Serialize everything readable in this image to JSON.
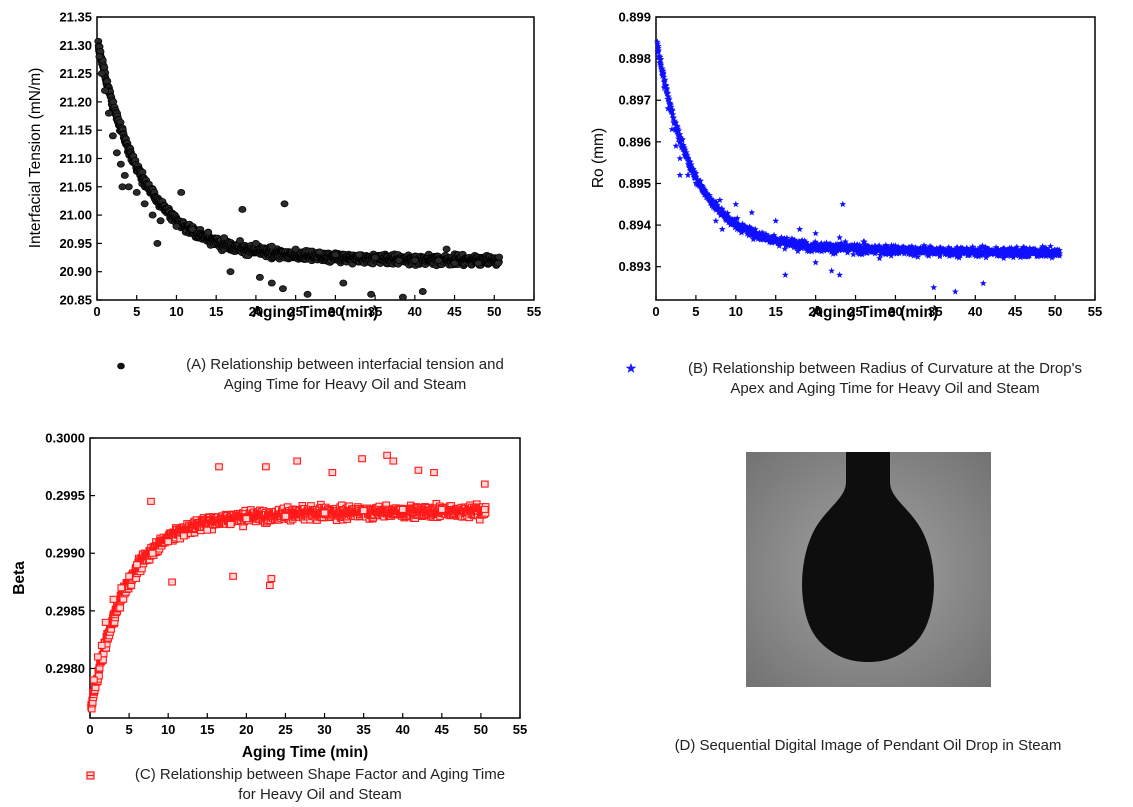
{
  "chart_data": [
    {
      "panel": "A",
      "type": "scatter",
      "xlabel": "Aging Time (min)",
      "ylabel": "Interfacial Tension (mN/m)",
      "xlim": [
        0,
        55
      ],
      "ylim": [
        20.85,
        21.35
      ],
      "xticks": [
        0,
        5,
        10,
        15,
        20,
        25,
        30,
        35,
        40,
        45,
        50,
        55
      ],
      "yticks": [
        "20.85",
        "20.90",
        "20.95",
        "21.00",
        "21.05",
        "21.10",
        "21.15",
        "21.20",
        "21.25",
        "21.30",
        "21.35"
      ],
      "marker": "circle",
      "color": "#111111",
      "series": [
        {
          "trend": {
            "start": 21.29,
            "plateau": 20.917,
            "tau": 5.5
          },
          "points": [
            [
              0.1,
              21.3
            ],
            [
              0.3,
              21.28
            ],
            [
              0.6,
              21.25
            ],
            [
              1.0,
              21.22
            ],
            [
              1.5,
              21.18
            ],
            [
              2.0,
              21.14
            ],
            [
              2.5,
              21.11
            ],
            [
              3.0,
              21.09
            ],
            [
              3.5,
              21.07
            ],
            [
              4.0,
              21.05
            ],
            [
              5.0,
              21.04
            ],
            [
              6.0,
              21.02
            ],
            [
              7.0,
              21.0
            ],
            [
              8.0,
              20.99
            ],
            [
              10.0,
              20.98
            ],
            [
              12.0,
              20.975
            ],
            [
              14.0,
              20.97
            ],
            [
              16.0,
              20.96
            ],
            [
              18.0,
              20.955
            ],
            [
              20.0,
              20.95
            ],
            [
              22.0,
              20.945
            ],
            [
              25.0,
              20.94
            ],
            [
              28.0,
              20.935
            ],
            [
              30.0,
              20.93
            ],
            [
              33.0,
              20.93
            ],
            [
              35.0,
              20.925
            ],
            [
              38.0,
              20.92
            ],
            [
              40.0,
              20.92
            ],
            [
              43.0,
              20.92
            ],
            [
              45.0,
              20.915
            ],
            [
              48.0,
              20.915
            ],
            [
              50.5,
              20.915
            ]
          ],
          "outliers": [
            [
              3.2,
              21.05
            ],
            [
              7.6,
              20.95
            ],
            [
              10.6,
              21.04
            ],
            [
              18.3,
              21.01
            ],
            [
              22.0,
              20.88
            ],
            [
              23.4,
              20.87
            ],
            [
              23.6,
              21.02
            ],
            [
              26.5,
              20.86
            ],
            [
              34.5,
              20.86
            ],
            [
              38.5,
              20.855
            ],
            [
              41.0,
              20.865
            ],
            [
              20.5,
              20.89
            ],
            [
              16.8,
              20.9
            ],
            [
              31.0,
              20.88
            ],
            [
              44.0,
              20.94
            ]
          ]
        }
      ]
    },
    {
      "panel": "B",
      "type": "scatter",
      "xlabel": "Aging Time (min)",
      "ylabel": "Ro (mm)",
      "xlim": [
        0,
        55
      ],
      "ylim": [
        0.8922,
        0.899
      ],
      "xticks": [
        0,
        5,
        10,
        15,
        20,
        25,
        30,
        35,
        40,
        45,
        50,
        55
      ],
      "yticks": [
        "0.893",
        "0.894",
        "0.895",
        "0.896",
        "0.897",
        "0.898",
        "0.899"
      ],
      "marker": "star",
      "color": "#1010ff",
      "series": [
        {
          "trend": {
            "start": 0.8982,
            "plateau": 0.8933,
            "tau": 4.5
          },
          "points": [
            [
              0.1,
              0.8986
            ],
            [
              0.3,
              0.8983
            ],
            [
              0.6,
              0.8978
            ],
            [
              1.0,
              0.8973
            ],
            [
              1.5,
              0.8968
            ],
            [
              2.0,
              0.8963
            ],
            [
              2.5,
              0.8959
            ],
            [
              3.0,
              0.8956
            ],
            [
              4.0,
              0.8952
            ],
            [
              5.0,
              0.895
            ],
            [
              6.0,
              0.8948
            ],
            [
              8.0,
              0.8946
            ],
            [
              10.0,
              0.8945
            ],
            [
              12.0,
              0.8943
            ],
            [
              15.0,
              0.8941
            ],
            [
              18.0,
              0.8939
            ],
            [
              20.0,
              0.8938
            ],
            [
              23.0,
              0.8937
            ],
            [
              26.0,
              0.8936
            ],
            [
              30.0,
              0.8935
            ],
            [
              35.0,
              0.8934
            ],
            [
              40.0,
              0.8933
            ],
            [
              45.0,
              0.8933
            ],
            [
              50.5,
              0.8933
            ]
          ],
          "outliers": [
            [
              3.0,
              0.8952
            ],
            [
              7.5,
              0.8941
            ],
            [
              8.3,
              0.8939
            ],
            [
              16.2,
              0.8928
            ],
            [
              20.0,
              0.8931
            ],
            [
              22.0,
              0.8929
            ],
            [
              23.0,
              0.8928
            ],
            [
              23.4,
              0.8945
            ],
            [
              28.0,
              0.8932
            ],
            [
              34.8,
              0.8925
            ],
            [
              37.5,
              0.8924
            ],
            [
              38.0,
              0.8922
            ],
            [
              41.0,
              0.8926
            ],
            [
              13.0,
              0.8937
            ]
          ]
        }
      ]
    },
    {
      "panel": "C",
      "type": "scatter",
      "xlabel": "Aging Time (min)",
      "ylabel": "Beta",
      "xlim": [
        0,
        55
      ],
      "ylim": [
        0.29757,
        0.3
      ],
      "xticks": [
        0,
        5,
        10,
        15,
        20,
        25,
        30,
        35,
        40,
        45,
        50,
        55
      ],
      "yticks": [
        "0.2980",
        "0.2985",
        "0.2990",
        "0.2995",
        "0.3000"
      ],
      "marker": "square",
      "color": "#ff1a1a",
      "series": [
        {
          "trend": {
            "start": 0.2977,
            "plateau": 0.29938,
            "tau": 4.5
          },
          "points": [
            [
              0.1,
              0.2977
            ],
            [
              0.5,
              0.2979
            ],
            [
              1.0,
              0.2981
            ],
            [
              1.5,
              0.2982
            ],
            [
              2.0,
              0.2984
            ],
            [
              3.0,
              0.2986
            ],
            [
              4.0,
              0.2987
            ],
            [
              5.0,
              0.2988
            ],
            [
              6.0,
              0.2989
            ],
            [
              8.0,
              0.299
            ],
            [
              10.0,
              0.2991
            ],
            [
              12.0,
              0.29915
            ],
            [
              15.0,
              0.2992
            ],
            [
              18.0,
              0.29925
            ],
            [
              20.0,
              0.2993
            ],
            [
              25.0,
              0.29932
            ],
            [
              30.0,
              0.29935
            ],
            [
              35.0,
              0.29937
            ],
            [
              40.0,
              0.29938
            ],
            [
              45.0,
              0.29938
            ],
            [
              50.5,
              0.29938
            ]
          ],
          "outliers": [
            [
              7.8,
              0.29945
            ],
            [
              10.5,
              0.29875
            ],
            [
              18.3,
              0.2988
            ],
            [
              23.0,
              0.29872
            ],
            [
              23.2,
              0.29878
            ],
            [
              26.5,
              0.2998
            ],
            [
              34.8,
              0.29982
            ],
            [
              38.0,
              0.29985
            ],
            [
              38.8,
              0.2998
            ],
            [
              16.5,
              0.29975
            ],
            [
              22.5,
              0.29975
            ],
            [
              31.0,
              0.2997
            ],
            [
              42.0,
              0.29972
            ],
            [
              50.5,
              0.2996
            ],
            [
              44.0,
              0.2997
            ]
          ]
        }
      ]
    }
  ],
  "captions": {
    "a": {
      "line1": "(A) Relationship between interfacial tension and",
      "line2": "Aging Time for Heavy Oil and Steam"
    },
    "b": {
      "line1": "(B) Relationship between Radius of Curvature at the Drop's",
      "line2": "Apex and Aging Time for Heavy Oil and Steam"
    },
    "c": {
      "line1": "(C) Relationship between Shape Factor and Aging Time",
      "line2": "for Heavy Oil and Steam"
    },
    "d": {
      "line1": "(D) Sequential Digital Image of Pendant Oil Drop in Steam"
    }
  },
  "image": {
    "background": "#8a8a8a",
    "drop_color": "#0e0e0e"
  }
}
